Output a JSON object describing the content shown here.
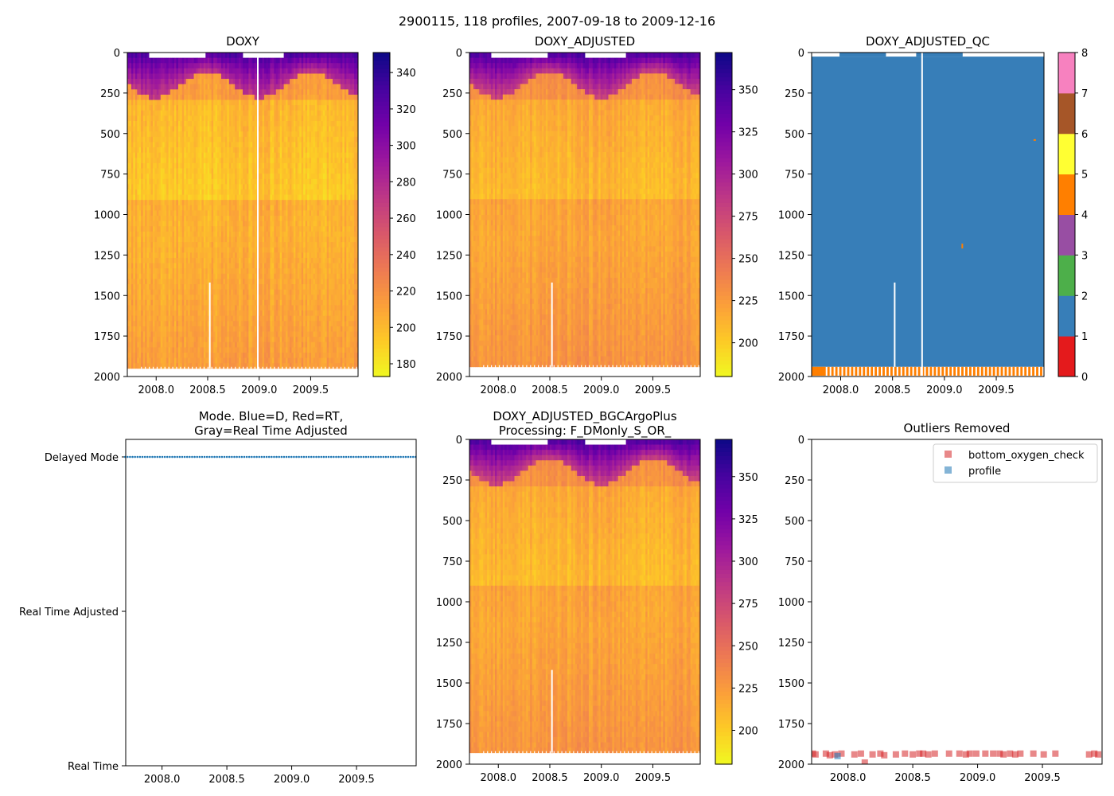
{
  "suptitle": "2900115, 118 profiles, 2007-09-18 to 2009-12-16",
  "colors": {
    "qc": [
      "#e41a1c",
      "#377eb8",
      "#4daf4a",
      "#984ea3",
      "#ff7f00",
      "#ffff33",
      "#a65628",
      "#f781bf",
      "#999999"
    ],
    "plasma": [
      "#f0f921",
      "#fdca26",
      "#fb9f3a",
      "#ed7953",
      "#d8576b",
      "#bd3786",
      "#9c179e",
      "#7201a8",
      "#46039f",
      "#0d0887"
    ],
    "mode_point": "#1f77b4",
    "outlier_bottom": "#d62728",
    "outlier_profile": "#1f77b4"
  },
  "chart_data": [
    {
      "id": "doxy",
      "type": "heatmap",
      "title": "DOXY",
      "xlim": [
        2007.72,
        2009.96
      ],
      "ylim": [
        2000,
        0
      ],
      "xticks": [
        "2008.0",
        "2008.5",
        "2009.0",
        "2009.5"
      ],
      "yticks": [
        "0",
        "250",
        "500",
        "750",
        "1000",
        "1250",
        "1500",
        "1750",
        "2000"
      ],
      "colorbar": {
        "min": 173,
        "max": 351,
        "ticks": [
          "180",
          "200",
          "220",
          "240",
          "260",
          "280",
          "300",
          "320",
          "340"
        ]
      },
      "profile_count": 118,
      "surface_value": 330,
      "deep_value": 205,
      "bottom_depth": 1950
    },
    {
      "id": "doxy_adjusted",
      "type": "heatmap",
      "title": "DOXY_ADJUSTED",
      "xlim": [
        2007.72,
        2009.96
      ],
      "ylim": [
        2000,
        0
      ],
      "xticks": [
        "2008.0",
        "2008.5",
        "2009.0",
        "2009.5"
      ],
      "yticks": [
        "0",
        "250",
        "500",
        "750",
        "1000",
        "1250",
        "1500",
        "1750",
        "2000"
      ],
      "colorbar": {
        "min": 180,
        "max": 372,
        "ticks": [
          "200",
          "225",
          "250",
          "275",
          "300",
          "325",
          "350"
        ]
      },
      "profile_count": 118,
      "surface_value": 350,
      "deep_value": 220,
      "bottom_depth": 1940
    },
    {
      "id": "doxy_adjusted_qc",
      "type": "heatmap",
      "title": "DOXY_ADJUSTED_QC",
      "xlim": [
        2007.72,
        2009.96
      ],
      "ylim": [
        2000,
        0
      ],
      "xticks": [
        "2008.0",
        "2008.5",
        "2009.0",
        "2009.5"
      ],
      "yticks": [
        "0",
        "250",
        "500",
        "750",
        "1000",
        "1250",
        "1500",
        "1750",
        "2000"
      ],
      "colorbar": {
        "min": 0,
        "max": 8,
        "ticks": [
          "0",
          "1",
          "2",
          "3",
          "4",
          "5",
          "6",
          "7",
          "8"
        ]
      },
      "main_flag": 1,
      "bottom_flag": 4,
      "bottom_band": [
        1940,
        1995
      ]
    },
    {
      "id": "mode",
      "type": "scatter",
      "title_lines": [
        "Mode. Blue=D, Red=RT,",
        "Gray=Real Time Adjusted"
      ],
      "xlim": [
        2007.72,
        2009.96
      ],
      "xticks": [
        "2008.0",
        "2008.5",
        "2009.0",
        "2009.5"
      ],
      "categories": [
        "Delayed Mode",
        "Real Time Adjusted",
        "Real Time"
      ],
      "mode_value": "Delayed Mode",
      "point_count": 118,
      "date_range": [
        2007.715,
        2009.956
      ]
    },
    {
      "id": "bgcargoplus",
      "type": "heatmap",
      "title_lines": [
        "DOXY_ADJUSTED_BGCArgoPlus",
        "Processing: F_DMonly_S_OR_"
      ],
      "xlim": [
        2007.72,
        2009.96
      ],
      "ylim": [
        2000,
        0
      ],
      "xticks": [
        "2008.0",
        "2008.5",
        "2009.0",
        "2009.5"
      ],
      "yticks": [
        "0",
        "250",
        "500",
        "750",
        "1000",
        "1250",
        "1500",
        "1750",
        "2000"
      ],
      "colorbar": {
        "min": 180,
        "max": 372,
        "ticks": [
          "200",
          "225",
          "250",
          "275",
          "300",
          "325",
          "350"
        ]
      },
      "profile_count": 118,
      "surface_value": 350,
      "deep_value": 220,
      "bottom_depth": 1930
    },
    {
      "id": "outliers",
      "type": "scatter",
      "title": "Outliers Removed",
      "xlim": [
        2007.72,
        2009.96
      ],
      "ylim": [
        2000,
        0
      ],
      "xticks": [
        "2008.0",
        "2008.5",
        "2009.0",
        "2009.5"
      ],
      "yticks": [
        "0",
        "250",
        "500",
        "750",
        "1000",
        "1250",
        "1500",
        "1750",
        "2000"
      ],
      "legend": [
        "bottom_oxygen_check",
        "profile"
      ],
      "legend_loc": "top-right",
      "bottom_oxygen_check": {
        "x": [
          2007.73,
          2007.75,
          2007.83,
          2007.86,
          2007.9,
          2007.95,
          2008.05,
          2008.1,
          2008.13,
          2008.19,
          2008.25,
          2008.28,
          2008.37,
          2008.44,
          2008.5,
          2008.55,
          2008.58,
          2008.62,
          2008.67,
          2008.78,
          2008.86,
          2008.91,
          2008.94,
          2008.99,
          2009.06,
          2009.12,
          2009.17,
          2009.2,
          2009.25,
          2009.29,
          2009.33,
          2009.43,
          2009.51,
          2009.6,
          2009.86,
          2009.9,
          2009.93
        ],
        "y": [
          1935,
          1940,
          1935,
          1945,
          1940,
          1935,
          1940,
          1935,
          1990,
          1940,
          1935,
          1945,
          1940,
          1935,
          1940,
          1935,
          1935,
          1940,
          1935,
          1935,
          1935,
          1940,
          1935,
          1935,
          1935,
          1935,
          1935,
          1940,
          1935,
          1940,
          1935,
          1935,
          1940,
          1935,
          1940,
          1935,
          1940
        ]
      },
      "profile": {
        "x": [
          2007.92
        ],
        "y": [
          1950
        ]
      }
    }
  ]
}
